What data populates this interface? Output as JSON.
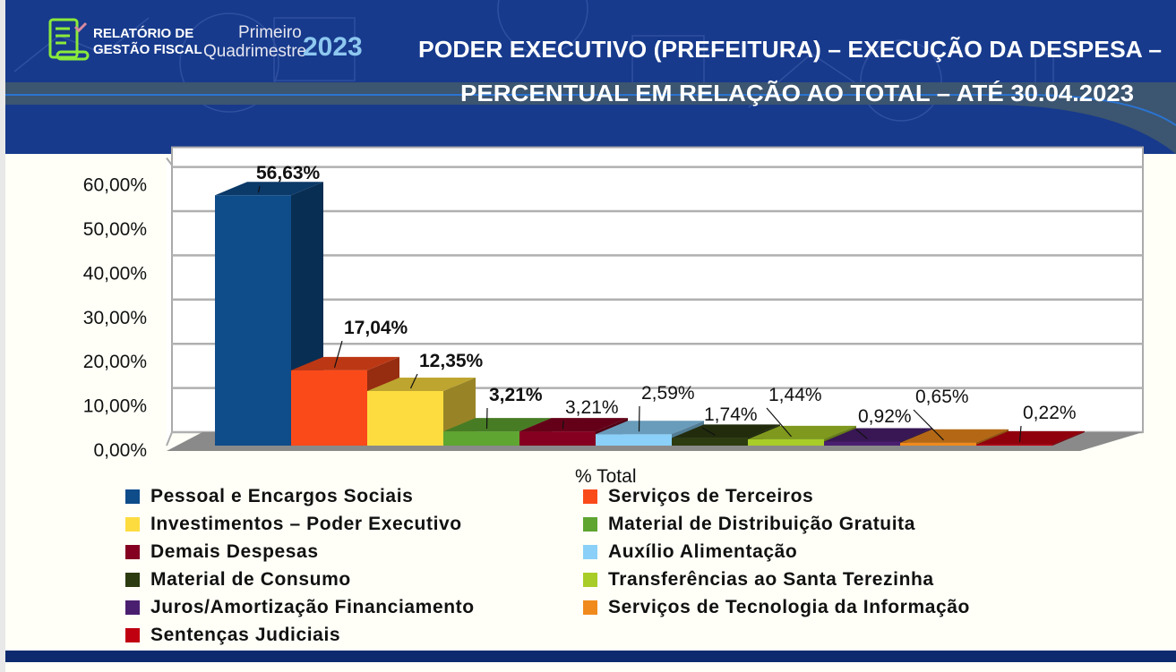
{
  "header": {
    "logo_line1": "RELATÓRIO DE",
    "logo_line2": "GESTÃO FISCAL",
    "period_line1": "Primeiro",
    "period_line2": "Quadrimestre",
    "period_year": "2023",
    "title_line1": "PODER EXECUTIVO (PREFEITURA) – EXECUÇÃO DA DESPESA –",
    "title_line2": "PERCENTUAL EM RELAÇÃO AO TOTAL – ATÉ 30.04.2023"
  },
  "colors": {
    "header_bg": "#173a8c",
    "footer": "#0d2a6e"
  },
  "chart_data": {
    "type": "bar",
    "style": "3d",
    "xlabel": "% Total",
    "ylim": [
      0,
      60
    ],
    "yticks": [
      "0,00%",
      "10,00%",
      "20,00%",
      "30,00%",
      "40,00%",
      "50,00%",
      "60,00%"
    ],
    "grid": true,
    "legend_position": "bottom",
    "series": [
      {
        "name": "Pessoal e Encargos Sociais",
        "value": 56.63,
        "label": "56,63%",
        "color": "#0f4c8a"
      },
      {
        "name": "Serviços de Terceiros",
        "value": 17.04,
        "label": "17,04%",
        "color": "#fa4a1a"
      },
      {
        "name": "Investimentos – Poder Executivo",
        "value": 12.35,
        "label": "12,35%",
        "color": "#fddc40"
      },
      {
        "name": "Material de Distribuição Gratuita",
        "value": 3.21,
        "label": "3,21%",
        "color": "#5ea531"
      },
      {
        "name": "Demais Despesas",
        "value": 3.21,
        "label": "3,21%",
        "color": "#850020"
      },
      {
        "name": "Auxílio Alimentação",
        "value": 2.59,
        "label": "2,59%",
        "color": "#8ad0f8"
      },
      {
        "name": "Material de Consumo",
        "value": 1.74,
        "label": "1,74%",
        "color": "#2d3b10"
      },
      {
        "name": "Transferências ao Santa Terezinha",
        "value": 1.44,
        "label": "1,44%",
        "color": "#a8cc28"
      },
      {
        "name": "Juros/Amortização Financiamento",
        "value": 0.92,
        "label": "0,92%",
        "color": "#4a1f70"
      },
      {
        "name": "Serviços de Tecnologia da Informação",
        "value": 0.65,
        "label": "0,65%",
        "color": "#f08a1c"
      },
      {
        "name": "Sentenças Judiciais",
        "value": 0.22,
        "label": "0,22%",
        "color": "#c00010"
      }
    ]
  }
}
